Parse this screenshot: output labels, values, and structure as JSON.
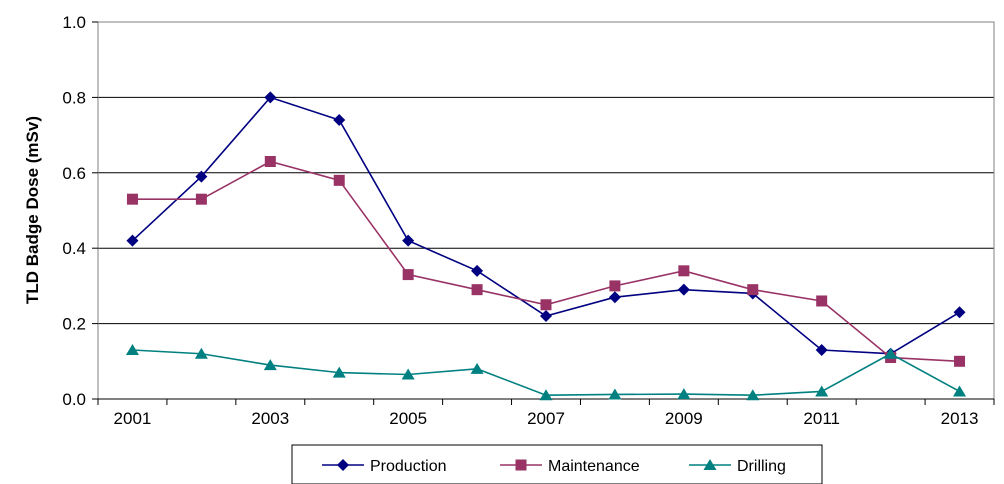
{
  "chart_data": {
    "type": "line",
    "title": "",
    "xlabel": "",
    "ylabel": "TLD Badge Dose (mSv)",
    "x": [
      2001,
      2002,
      2003,
      2004,
      2005,
      2006,
      2007,
      2008,
      2009,
      2010,
      2011,
      2012,
      2013
    ],
    "x_tick_labels": [
      "2001",
      "2003",
      "2005",
      "2007",
      "2009",
      "2011",
      "2013"
    ],
    "y_tick_labels": [
      "0.0",
      "0.2",
      "0.4",
      "0.6",
      "0.8",
      "1.0"
    ],
    "ylim": [
      0,
      1.0
    ],
    "grid": "horizontal",
    "legend_position": "bottom",
    "series": [
      {
        "name": "Production",
        "color": "#000080",
        "marker": "diamond",
        "values": [
          0.42,
          0.59,
          0.8,
          0.74,
          0.42,
          0.34,
          0.22,
          0.27,
          0.29,
          0.28,
          0.13,
          0.12,
          0.23
        ]
      },
      {
        "name": "Maintenance",
        "color": "#993366",
        "marker": "square",
        "values": [
          0.53,
          0.53,
          0.63,
          0.58,
          0.33,
          0.29,
          0.25,
          0.3,
          0.34,
          0.29,
          0.26,
          0.11,
          0.1
        ]
      },
      {
        "name": "Drilling",
        "color": "#008080",
        "marker": "triangle",
        "values": [
          0.13,
          0.12,
          0.09,
          0.07,
          0.065,
          0.08,
          0.01,
          0.012,
          0.013,
          0.01,
          0.02,
          0.12,
          0.02
        ]
      }
    ]
  }
}
